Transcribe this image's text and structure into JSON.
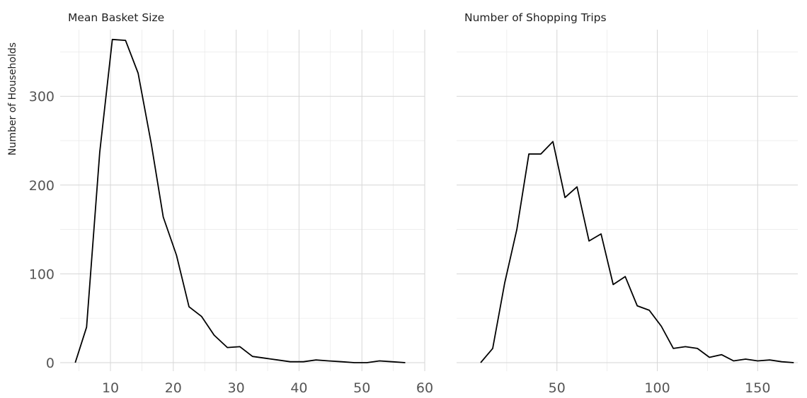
{
  "chart_data": [
    {
      "type": "line",
      "title": "Mean Basket Size",
      "xlabel": "",
      "ylabel": "Number of Households",
      "xlim": [
        2,
        60
      ],
      "ylim": [
        0,
        375
      ],
      "xticks": [
        10,
        20,
        30,
        40,
        50,
        60
      ],
      "yticks": [
        0,
        100,
        200,
        300
      ],
      "grid": true,
      "legend": "none",
      "x": [
        4.4,
        6.2,
        8.3,
        10.3,
        12.4,
        14.4,
        16.5,
        18.4,
        20.5,
        22.5,
        24.5,
        26.5,
        28.6,
        30.6,
        32.6,
        34.6,
        36.6,
        38.6,
        40.7,
        42.7,
        44.7,
        46.8,
        48.8,
        50.8,
        52.8,
        54.8,
        56.9
      ],
      "values": [
        0,
        40,
        237,
        364,
        363,
        326,
        246,
        164,
        121,
        63,
        52,
        31,
        17,
        18,
        7,
        5,
        3,
        1,
        1,
        3,
        2,
        1,
        0,
        0,
        2,
        1,
        0
      ]
    },
    {
      "type": "line",
      "title": "Number of Shopping Trips",
      "xlabel": "",
      "ylabel": "",
      "xlim": [
        0,
        170
      ],
      "ylim": [
        0,
        375
      ],
      "xticks": [
        50,
        100,
        150
      ],
      "yticks": [
        0,
        100,
        200,
        300
      ],
      "grid": true,
      "legend": "none",
      "x": [
        12,
        18,
        24,
        30,
        36,
        42,
        48,
        54,
        60,
        66,
        72,
        78,
        84,
        90,
        96,
        102,
        108,
        114,
        120,
        126,
        132,
        138,
        144,
        150,
        156,
        162,
        168
      ],
      "values": [
        0,
        16,
        90,
        150,
        235,
        235,
        249,
        186,
        198,
        137,
        145,
        88,
        97,
        64,
        59,
        41,
        16,
        18,
        16,
        6,
        9,
        2,
        4,
        2,
        3,
        1,
        0
      ]
    }
  ]
}
